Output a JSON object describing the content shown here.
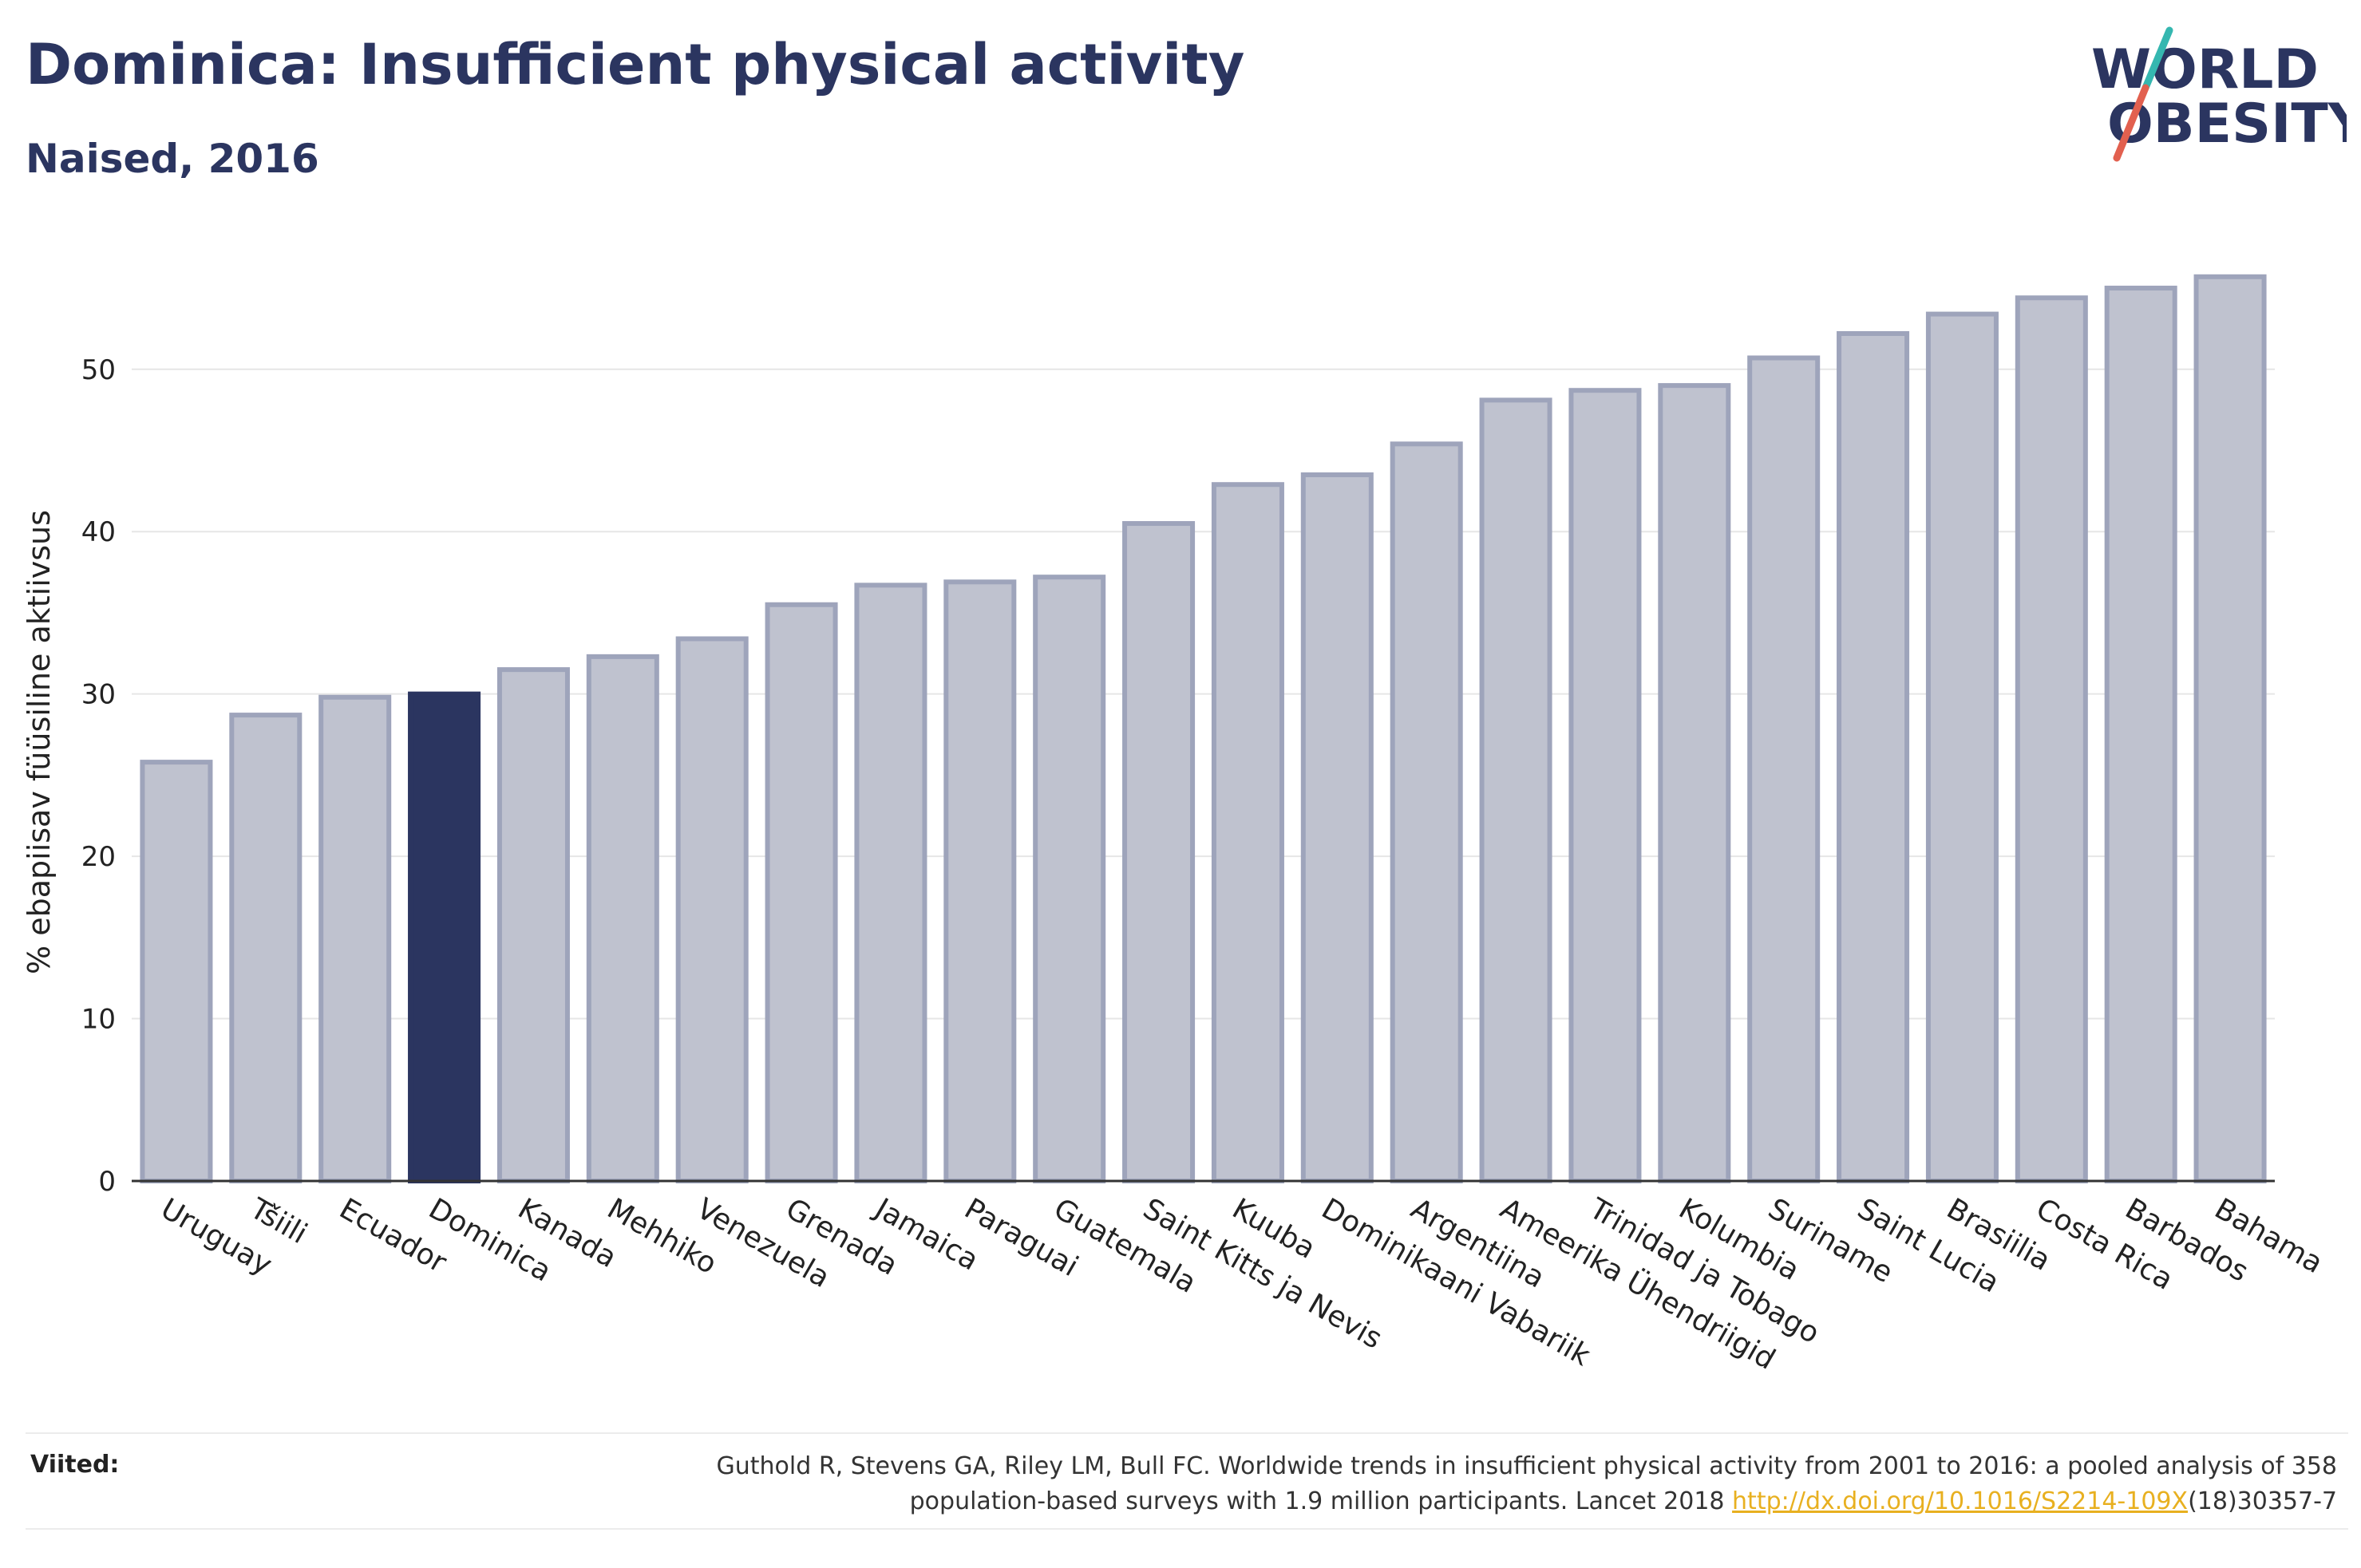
{
  "header": {
    "title": "Dominica: Insufficient physical activity",
    "subtitle": "Naised, 2016"
  },
  "logo": {
    "line1": "WORLD",
    "line2": "OBESITY"
  },
  "colors": {
    "bar": "#bfc2cf",
    "bar_border": "#9ea4bb",
    "highlight": "#2b3560",
    "grid": "#e6e6e6",
    "logo_text": "#2b3560",
    "logo_slash_teal": "#35b7b0",
    "logo_slash_red": "#e2604f"
  },
  "chart_data": {
    "type": "bar",
    "ylabel": "% ebapiisav füüsiline aktiivsus",
    "ylim": [
      0,
      58
    ],
    "yticks": [
      0,
      10,
      20,
      30,
      40,
      50
    ],
    "grid": true,
    "highlight": "Dominica",
    "categories": [
      "Uruguay",
      "Tšiili",
      "Ecuador",
      "Dominica",
      "Kanada",
      "Mehhiko",
      "Venezuela",
      "Grenada",
      "Jamaica",
      "Paraguai",
      "Guatemala",
      "Saint Kitts ja Nevis",
      "Kuuba",
      "Dominikaani Vabariik",
      "Argentiina",
      "Ameerika Ühendriigid",
      "Trinidad ja Tobago",
      "Kolumbia",
      "Suriname",
      "Saint Lucia",
      "Brasiilia",
      "Costa Rica",
      "Barbados",
      "Bahama"
    ],
    "values": [
      25.8,
      28.7,
      29.8,
      30.0,
      31.5,
      32.3,
      33.4,
      35.5,
      36.7,
      36.9,
      37.2,
      40.5,
      42.9,
      43.5,
      45.4,
      48.1,
      48.7,
      49.0,
      50.7,
      52.2,
      53.4,
      54.4,
      55.0,
      55.7
    ]
  },
  "references": {
    "label": "Viited:",
    "text_line1": "Guthold R, Stevens GA, Riley LM, Bull FC. Worldwide trends in insufficient physical activity from 2001 to 2016: a pooled analysis of 358",
    "text_line2_pre": "population-based surveys with 1.9 million participants. Lancet 2018 ",
    "link": "http://dx.doi.org/10.1016/S2214-109X",
    "text_line2_post": "(18)30357-7"
  }
}
